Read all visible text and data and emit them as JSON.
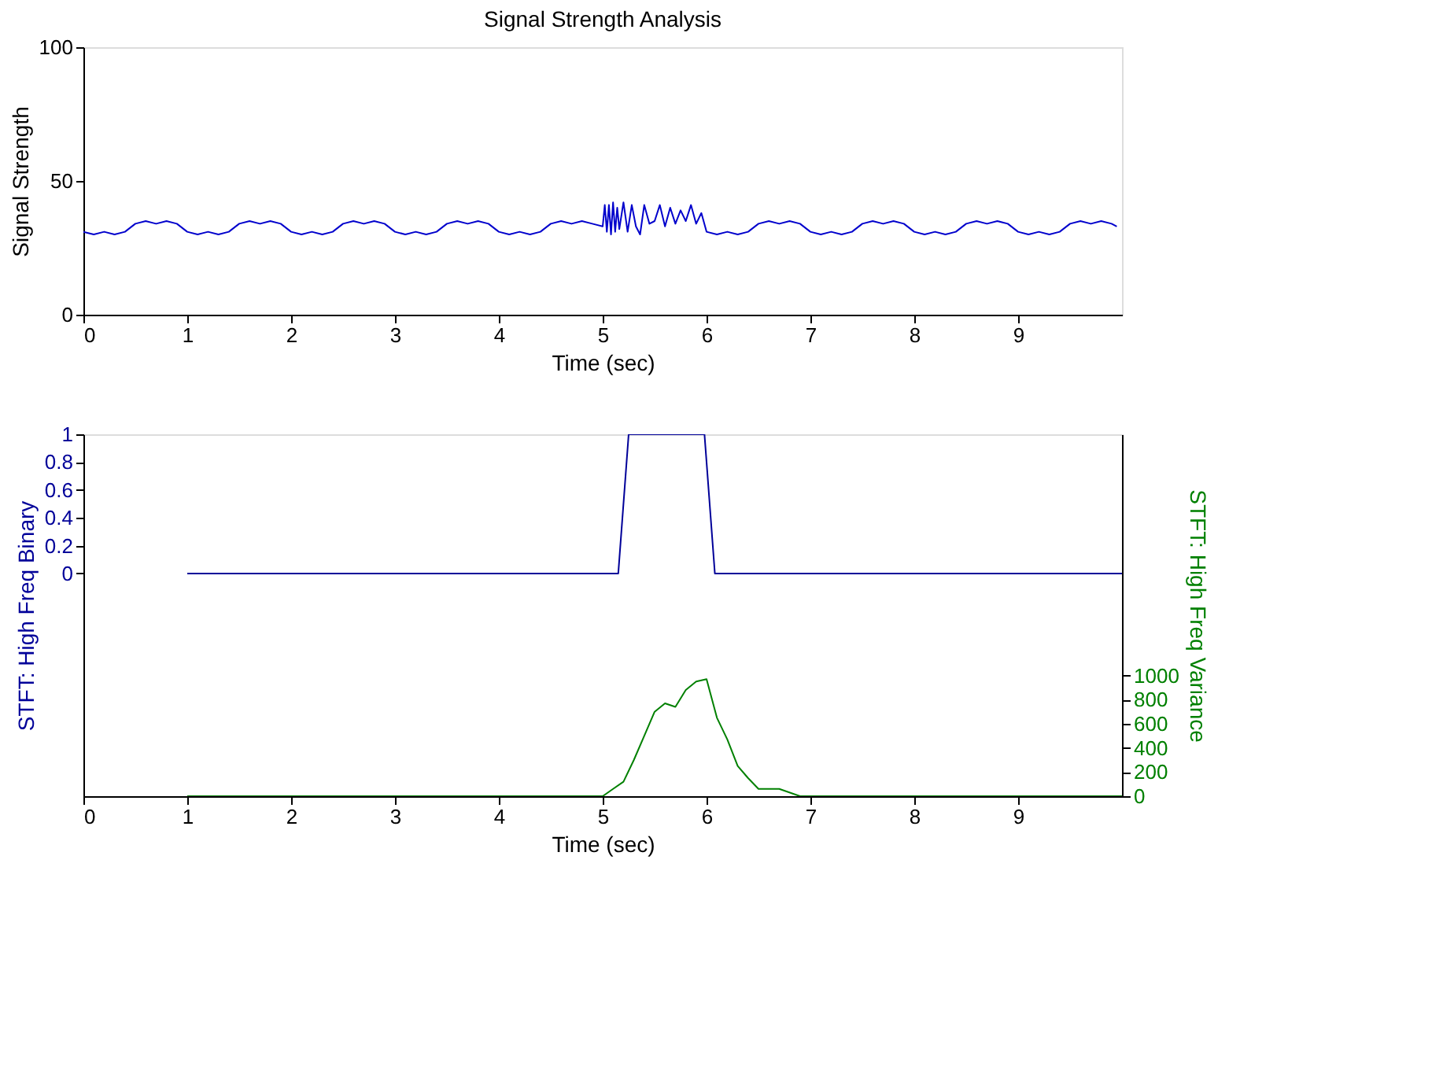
{
  "chart_data": [
    {
      "type": "line",
      "title": "Signal Strength Analysis",
      "xlabel": "Time (sec)",
      "ylabel": "Signal Strength",
      "xlim": [
        0,
        10
      ],
      "xticks": [
        0,
        1,
        2,
        3,
        4,
        5,
        6,
        7,
        8,
        9
      ],
      "ylim": [
        0,
        100
      ],
      "yticks": [
        0,
        50,
        100
      ],
      "grid": false,
      "legend": false,
      "marker": "none",
      "line_style": "solid",
      "series": [
        {
          "color": "#0000cc",
          "x": [
            0,
            0.1,
            0.2,
            0.3,
            0.4,
            0.5,
            0.6,
            0.7,
            0.8,
            0.9,
            1.0,
            1.1,
            1.2,
            1.3,
            1.4,
            1.5,
            1.6,
            1.7,
            1.8,
            1.9,
            2.0,
            2.1,
            2.2,
            2.3,
            2.4,
            2.5,
            2.6,
            2.7,
            2.8,
            2.9,
            3.0,
            3.1,
            3.2,
            3.3,
            3.4,
            3.5,
            3.6,
            3.7,
            3.8,
            3.9,
            4.0,
            4.1,
            4.2,
            4.3,
            4.4,
            4.5,
            4.6,
            4.7,
            4.8,
            4.9,
            5.0,
            5.02,
            5.04,
            5.06,
            5.08,
            5.1,
            5.12,
            5.14,
            5.16,
            5.2,
            5.24,
            5.28,
            5.32,
            5.36,
            5.4,
            5.45,
            5.5,
            5.55,
            5.6,
            5.65,
            5.7,
            5.75,
            5.8,
            5.85,
            5.9,
            5.95,
            6.0,
            6.1,
            6.2,
            6.3,
            6.4,
            6.5,
            6.6,
            6.7,
            6.8,
            6.9,
            7.0,
            7.1,
            7.2,
            7.3,
            7.4,
            7.5,
            7.6,
            7.7,
            7.8,
            7.9,
            8.0,
            8.1,
            8.2,
            8.3,
            8.4,
            8.5,
            8.6,
            8.7,
            8.8,
            8.9,
            9.0,
            9.1,
            9.2,
            9.3,
            9.4,
            9.5,
            9.6,
            9.7,
            9.8,
            9.9,
            9.95
          ],
          "values": [
            31,
            30,
            31,
            30,
            31,
            34,
            35,
            34,
            35,
            34,
            31,
            30,
            31,
            30,
            31,
            34,
            35,
            34,
            35,
            34,
            31,
            30,
            31,
            30,
            31,
            34,
            35,
            34,
            35,
            34,
            31,
            30,
            31,
            30,
            31,
            34,
            35,
            34,
            35,
            34,
            31,
            30,
            31,
            30,
            31,
            34,
            35,
            34,
            35,
            34,
            33,
            41,
            31,
            41,
            30,
            42,
            31,
            40,
            32,
            42,
            31,
            41,
            33,
            30,
            41,
            34,
            35,
            41,
            33,
            40,
            34,
            39,
            35,
            41,
            34,
            38,
            31,
            30,
            31,
            30,
            31,
            34,
            35,
            34,
            35,
            34,
            31,
            30,
            31,
            30,
            31,
            34,
            35,
            34,
            35,
            34,
            31,
            30,
            31,
            30,
            31,
            34,
            35,
            34,
            35,
            34,
            31,
            30,
            31,
            30,
            31,
            34,
            35,
            34,
            35,
            34,
            33
          ]
        }
      ]
    },
    {
      "type": "line",
      "xlabel": "Time (sec)",
      "ylabel": "STFT: High Freq Binary",
      "y2label": "STFT: High Freq Variance",
      "xlim": [
        0,
        10
      ],
      "xticks": [
        0,
        1,
        2,
        3,
        4,
        5,
        6,
        7,
        8,
        9
      ],
      "ylim": [
        -1.6,
        1
      ],
      "yticks": [
        0,
        0.2,
        0.4,
        0.6,
        0.8,
        1
      ],
      "y2lim": [
        0,
        3000
      ],
      "y2ticks": [
        0,
        200,
        400,
        600,
        800,
        1000
      ],
      "grid": false,
      "legend": false,
      "marker": "none",
      "line_style": "solid",
      "series": [
        {
          "color": "#000099",
          "x": [
            1,
            5.15,
            5.25,
            5.98,
            6.08,
            10
          ],
          "values": [
            0,
            0,
            1,
            1,
            0,
            0
          ]
        },
        {
          "color": "#008000",
          "axis": "y2",
          "x": [
            1,
            5.0,
            5.1,
            5.2,
            5.3,
            5.4,
            5.5,
            5.6,
            5.7,
            5.8,
            5.9,
            6.0,
            6.1,
            6.2,
            6.3,
            6.4,
            6.5,
            6.7,
            6.9,
            10
          ],
          "values": [
            0,
            0,
            60,
            120,
            300,
            500,
            700,
            770,
            740,
            880,
            950,
            970,
            650,
            470,
            250,
            150,
            60,
            60,
            0,
            0
          ]
        }
      ]
    }
  ]
}
